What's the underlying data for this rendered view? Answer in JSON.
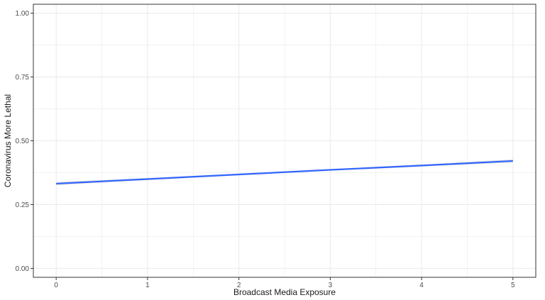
{
  "chart_data": {
    "type": "line",
    "title": "",
    "xlabel": "Broadcast Media Exposure",
    "ylabel": "Coronavirus More Lethal",
    "xlim": [
      -0.25,
      5.25
    ],
    "ylim": [
      -0.035,
      1.035
    ],
    "x_ticks": [
      0,
      1,
      2,
      3,
      4,
      5
    ],
    "x_tick_labels": [
      "0",
      "1",
      "2",
      "3",
      "4",
      "5"
    ],
    "y_ticks": [
      0.0,
      0.25,
      0.5,
      0.75,
      1.0
    ],
    "y_tick_labels": [
      "0.00",
      "0.25",
      "0.50",
      "0.75",
      "1.00"
    ],
    "grid": true,
    "series": [
      {
        "x": [
          0,
          1,
          2,
          3,
          4,
          5
        ],
        "y": [
          0.332,
          0.35,
          0.368,
          0.386,
          0.403,
          0.421
        ],
        "ci_lower": [
          0.326,
          0.346,
          0.365,
          0.383,
          0.399,
          0.415
        ],
        "ci_upper": [
          0.338,
          0.354,
          0.371,
          0.389,
          0.407,
          0.427
        ]
      }
    ],
    "colors": {
      "line": "#3366ff",
      "ribbon": "#b3b3b3",
      "panel_border": "#333333",
      "grid": "#ebebeb"
    }
  }
}
